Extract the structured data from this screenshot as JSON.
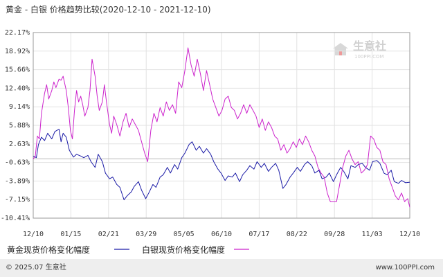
{
  "chart_data": {
    "type": "line",
    "title": "黄金 - 白银 价格趋势比较(2020-12-10 - 2021-12-10)",
    "x_ticks": [
      "12/10",
      "01/15",
      "02/21",
      "03/29",
      "05/05",
      "06/10",
      "07/17",
      "08/22",
      "09/28",
      "11/03",
      "12/10"
    ],
    "y_ticks": [
      "22.17%",
      "18.92%",
      "15.66%",
      "12.40%",
      "9.14%",
      "5.88%",
      "2.63%",
      "-0.63%",
      "-3.89%",
      "-7.15%",
      "-10.41%"
    ],
    "ylim": [
      -10.41,
      22.17
    ],
    "grid": true,
    "series": [
      {
        "name": "黄金现货价格变化幅度",
        "color": "#1a1aa6",
        "x": [
          "2020-12-10",
          "2020-12-13",
          "2020-12-15",
          "2020-12-18",
          "2020-12-21",
          "2020-12-24",
          "2020-12-28",
          "2020-12-31",
          "2021-01-04",
          "2021-01-06",
          "2021-01-08",
          "2021-01-11",
          "2021-01-14",
          "2021-01-18",
          "2021-01-21",
          "2021-01-25",
          "2021-01-28",
          "2021-02-01",
          "2021-02-04",
          "2021-02-08",
          "2021-02-11",
          "2021-02-15",
          "2021-02-18",
          "2021-02-22",
          "2021-02-25",
          "2021-03-01",
          "2021-03-04",
          "2021-03-08",
          "2021-03-11",
          "2021-03-15",
          "2021-03-18",
          "2021-03-22",
          "2021-03-25",
          "2021-03-29",
          "2021-04-01",
          "2021-04-05",
          "2021-04-08",
          "2021-04-12",
          "2021-04-15",
          "2021-04-19",
          "2021-04-22",
          "2021-04-26",
          "2021-04-29",
          "2021-05-03",
          "2021-05-06",
          "2021-05-10",
          "2021-05-13",
          "2021-05-17",
          "2021-05-20",
          "2021-05-24",
          "2021-05-27",
          "2021-05-31",
          "2021-06-03",
          "2021-06-07",
          "2021-06-10",
          "2021-06-14",
          "2021-06-17",
          "2021-06-21",
          "2021-06-24",
          "2021-06-28",
          "2021-07-01",
          "2021-07-05",
          "2021-07-08",
          "2021-07-12",
          "2021-07-15",
          "2021-07-19",
          "2021-07-22",
          "2021-07-26",
          "2021-07-29",
          "2021-08-02",
          "2021-08-05",
          "2021-08-09",
          "2021-08-12",
          "2021-08-16",
          "2021-08-19",
          "2021-08-23",
          "2021-08-26",
          "2021-08-30",
          "2021-09-02",
          "2021-09-06",
          "2021-09-09",
          "2021-09-13",
          "2021-09-16",
          "2021-09-20",
          "2021-09-23",
          "2021-09-27",
          "2021-09-30",
          "2021-10-04",
          "2021-10-07",
          "2021-10-11",
          "2021-10-14",
          "2021-10-18",
          "2021-10-21",
          "2021-10-25",
          "2021-10-28",
          "2021-11-01",
          "2021-11-04",
          "2021-11-08",
          "2021-11-11",
          "2021-11-15",
          "2021-11-18",
          "2021-11-22",
          "2021-11-25",
          "2021-11-29",
          "2021-12-02",
          "2021-12-06",
          "2021-12-10"
        ],
        "values": [
          0.5,
          0.2,
          2.5,
          3.8,
          3.2,
          4.5,
          3.5,
          4.8,
          5.2,
          3.0,
          4.5,
          3.8,
          1.5,
          0.3,
          0.8,
          0.5,
          0.2,
          0.6,
          -0.5,
          -1.5,
          0.8,
          -0.5,
          -2.5,
          -3.5,
          -3.2,
          -4.5,
          -5.0,
          -7.2,
          -6.5,
          -5.8,
          -4.8,
          -4.0,
          -5.5,
          -7.0,
          -6.0,
          -4.5,
          -5.0,
          -3.2,
          -2.8,
          -1.5,
          -2.5,
          -1.0,
          -1.8,
          0.2,
          1.0,
          2.5,
          3.0,
          1.5,
          2.2,
          1.0,
          1.8,
          0.8,
          -0.5,
          -1.8,
          -2.5,
          -3.8,
          -3.0,
          -3.2,
          -2.5,
          -4.0,
          -2.8,
          -2.0,
          -1.2,
          -1.8,
          -0.5,
          -1.5,
          -0.8,
          -2.2,
          -1.5,
          -0.8,
          -2.0,
          -5.2,
          -4.5,
          -3.2,
          -2.5,
          -1.5,
          -2.2,
          -1.0,
          -0.5,
          -1.2,
          -2.5,
          -2.0,
          -3.5,
          -3.2,
          -2.5,
          -4.0,
          -2.8,
          -1.5,
          -2.2,
          -3.5,
          -1.2,
          -1.5,
          -1.0,
          -0.8,
          -1.5,
          -2.0,
          -0.5,
          -0.3,
          -0.8,
          -2.5,
          -2.8,
          -2.0,
          -4.0,
          -4.3,
          -3.8,
          -4.2,
          -4.1
        ]
      },
      {
        "name": "白银现货价格变化幅度",
        "color": "#cc22cc",
        "x": [
          "2020-12-10",
          "2020-12-12",
          "2020-12-14",
          "2020-12-16",
          "2020-12-18",
          "2020-12-21",
          "2020-12-23",
          "2020-12-25",
          "2020-12-28",
          "2020-12-30",
          "2021-01-01",
          "2021-01-04",
          "2021-01-06",
          "2021-01-08",
          "2021-01-11",
          "2021-01-13",
          "2021-01-15",
          "2021-01-17",
          "2021-01-19",
          "2021-01-21",
          "2021-01-23",
          "2021-01-25",
          "2021-01-27",
          "2021-01-29",
          "2021-02-01",
          "2021-02-03",
          "2021-02-05",
          "2021-02-08",
          "2021-02-10",
          "2021-02-12",
          "2021-02-15",
          "2021-02-17",
          "2021-02-19",
          "2021-02-22",
          "2021-02-24",
          "2021-02-26",
          "2021-03-01",
          "2021-03-04",
          "2021-03-07",
          "2021-03-10",
          "2021-03-13",
          "2021-03-16",
          "2021-03-19",
          "2021-03-22",
          "2021-03-25",
          "2021-03-28",
          "2021-03-31",
          "2021-04-03",
          "2021-04-06",
          "2021-04-09",
          "2021-04-12",
          "2021-04-15",
          "2021-04-18",
          "2021-04-21",
          "2021-04-24",
          "2021-04-27",
          "2021-04-30",
          "2021-05-03",
          "2021-05-06",
          "2021-05-09",
          "2021-05-12",
          "2021-05-15",
          "2021-05-18",
          "2021-05-21",
          "2021-05-24",
          "2021-05-27",
          "2021-05-30",
          "2021-06-02",
          "2021-06-05",
          "2021-06-08",
          "2021-06-11",
          "2021-06-14",
          "2021-06-17",
          "2021-06-20",
          "2021-06-23",
          "2021-06-26",
          "2021-06-29",
          "2021-07-02",
          "2021-07-05",
          "2021-07-08",
          "2021-07-11",
          "2021-07-14",
          "2021-07-17",
          "2021-07-20",
          "2021-07-23",
          "2021-07-26",
          "2021-07-29",
          "2021-08-01",
          "2021-08-04",
          "2021-08-07",
          "2021-08-10",
          "2021-08-13",
          "2021-08-16",
          "2021-08-19",
          "2021-08-22",
          "2021-08-25",
          "2021-08-28",
          "2021-08-31",
          "2021-09-03",
          "2021-09-06",
          "2021-09-09",
          "2021-09-12",
          "2021-09-15",
          "2021-09-18",
          "2021-09-21",
          "2021-09-24",
          "2021-09-27",
          "2021-09-30",
          "2021-10-03",
          "2021-10-06",
          "2021-10-09",
          "2021-10-12",
          "2021-10-15",
          "2021-10-18",
          "2021-10-21",
          "2021-10-24",
          "2021-10-27",
          "2021-10-30",
          "2021-11-02",
          "2021-11-05",
          "2021-11-08",
          "2021-11-11",
          "2021-11-14",
          "2021-11-17",
          "2021-11-20",
          "2021-11-23",
          "2021-11-26",
          "2021-11-29",
          "2021-12-02",
          "2021-12-05",
          "2021-12-08",
          "2021-12-10"
        ],
        "values": [
          0.0,
          0.5,
          4.0,
          3.5,
          8.0,
          11.5,
          13.0,
          10.5,
          12.0,
          13.5,
          12.5,
          14.0,
          13.8,
          14.5,
          12.0,
          9.0,
          5.0,
          3.5,
          8.5,
          12.0,
          10.0,
          11.0,
          9.5,
          7.5,
          9.0,
          12.0,
          17.5,
          14.5,
          11.0,
          8.5,
          10.0,
          13.0,
          10.0,
          6.0,
          4.5,
          7.5,
          6.0,
          4.0,
          6.5,
          8.0,
          5.5,
          7.0,
          6.0,
          5.0,
          3.0,
          1.0,
          -0.5,
          5.0,
          8.0,
          6.5,
          9.0,
          7.5,
          10.0,
          8.5,
          9.5,
          8.0,
          13.5,
          12.5,
          15.5,
          19.5,
          16.5,
          14.5,
          17.5,
          15.0,
          12.0,
          15.5,
          13.0,
          10.5,
          9.0,
          7.5,
          8.5,
          10.5,
          11.0,
          9.0,
          8.5,
          7.0,
          8.0,
          9.5,
          8.0,
          9.5,
          8.5,
          7.5,
          5.5,
          7.0,
          5.0,
          6.5,
          5.5,
          4.0,
          3.5,
          1.5,
          2.5,
          1.0,
          1.8,
          3.0,
          2.0,
          3.5,
          2.5,
          4.0,
          3.0,
          1.5,
          0.5,
          -1.5,
          -2.5,
          -3.2,
          -6.0,
          -7.5,
          -7.5,
          -7.5,
          -4.5,
          -1.5,
          0.5,
          1.5,
          0.0,
          -1.0,
          -0.5,
          -2.5,
          -2.0,
          -1.0,
          4.0,
          3.5,
          2.0,
          1.5,
          -0.5,
          -1.0,
          -3.5,
          -5.0,
          -6.5,
          -7.2,
          -6.0,
          -7.5,
          -7.0,
          -8.5
        ]
      }
    ]
  },
  "watermark": {
    "brand": "生意社",
    "url": "100PPI.COM"
  },
  "footer": {
    "copyright": "© 2025.07 生意社",
    "site": "www.100PPI.com"
  }
}
